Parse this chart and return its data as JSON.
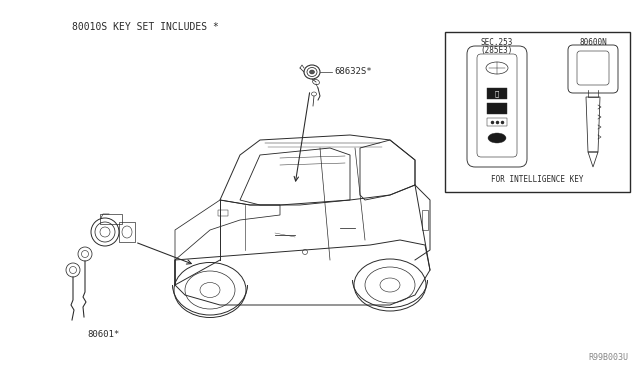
{
  "bg_color": "#ffffff",
  "main_label": "80010S KEY SET INCLUDES *",
  "part_68632S": "68632S*",
  "part_80601": "80601*",
  "part_80600N": "80600N",
  "part_SEC253": "SEC.253\n(285E3)",
  "inset_label": "FOR INTELLIGENCE KEY",
  "watermark": "R99B003U",
  "line_color": "#2a2a2a",
  "inset_bg": "#ffffff"
}
